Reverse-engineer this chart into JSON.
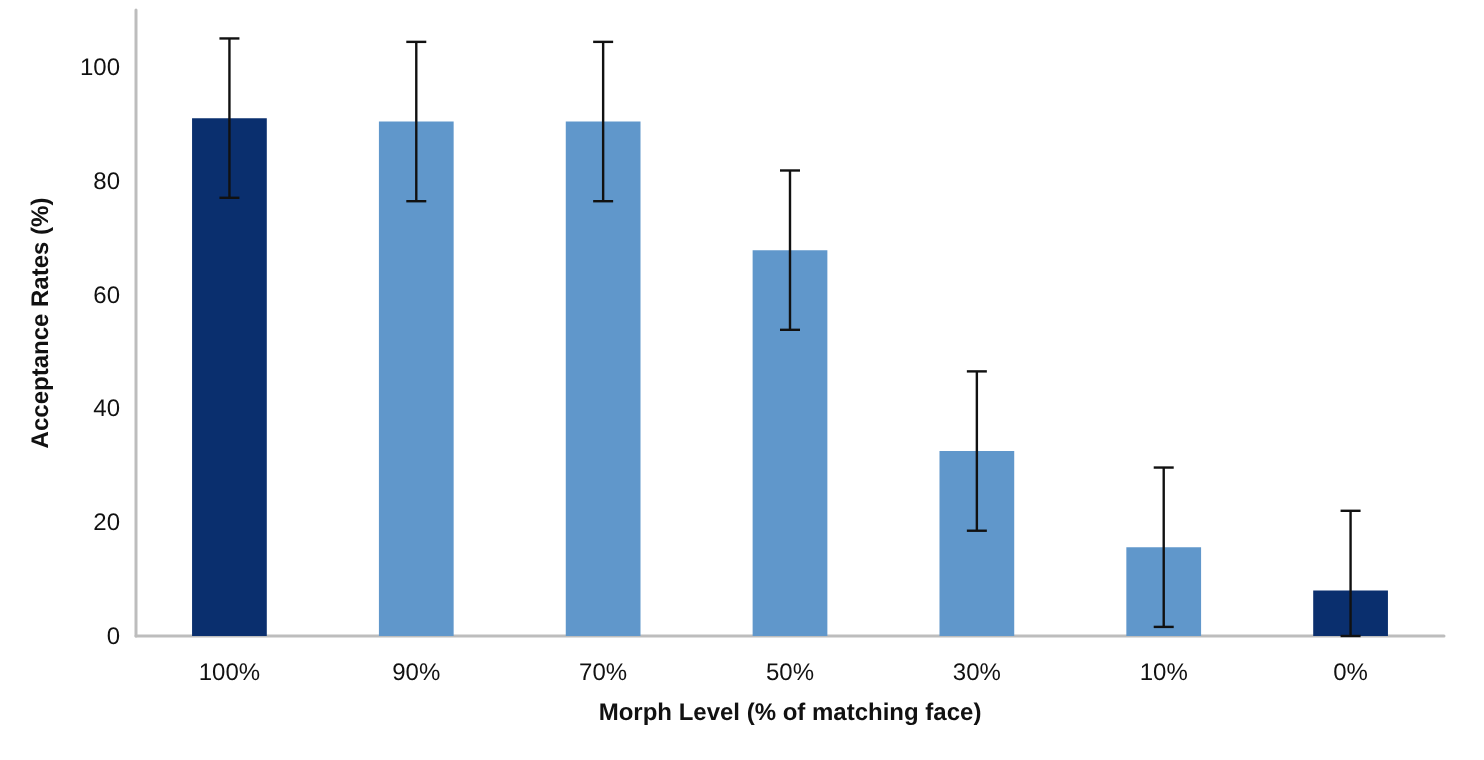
{
  "chart_data": {
    "type": "bar",
    "xlabel": "Morph Level (% of matching face)",
    "ylabel": "Acceptance Rates (%)",
    "categories": [
      "100%",
      "90%",
      "70%",
      "50%",
      "30%",
      "10%",
      "0%"
    ],
    "values": [
      91,
      90.4,
      90.4,
      67.8,
      32.5,
      15.6,
      8
    ],
    "colors": [
      "#0a2f6e",
      "#6097cb",
      "#6097cb",
      "#6097cb",
      "#6097cb",
      "#6097cb",
      "#0a2f6e"
    ],
    "errors": [
      14,
      14,
      14,
      14,
      14,
      14,
      [
        0,
        22
      ]
    ],
    "ylim": [
      0,
      110
    ],
    "yticks": [
      0,
      20,
      40,
      60,
      80,
      100
    ]
  }
}
